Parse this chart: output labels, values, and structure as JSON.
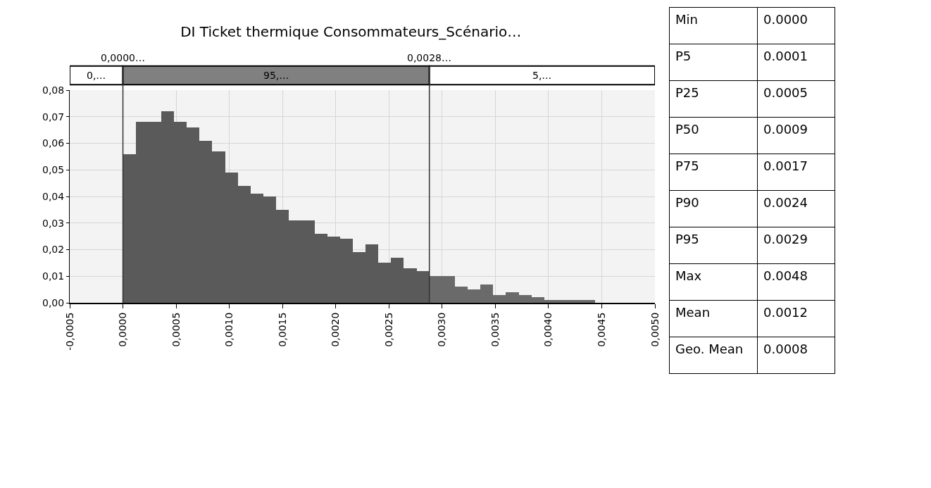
{
  "chart_data": [
    {
      "type": "histogram",
      "title": "DI Ticket thermique Consommateurs_Scénario…",
      "bins": [
        0,
        0.00012,
        0.00024,
        0.00036,
        0.00048,
        0.0006,
        0.00072,
        0.00084,
        0.00096,
        0.00108,
        0.0012,
        0.00132,
        0.00144,
        0.00156,
        0.00168,
        0.0018,
        0.00192,
        0.00204,
        0.00216,
        0.00228,
        0.0024,
        0.00252,
        0.00264,
        0.00276,
        0.00288,
        0.003,
        0.00312,
        0.00324,
        0.00336,
        0.00348,
        0.0036,
        0.00372,
        0.00384,
        0.00396,
        0.00408,
        0.0042,
        0.00432,
        0.00444
      ],
      "values": [
        0.056,
        0.068,
        0.068,
        0.072,
        0.068,
        0.066,
        0.061,
        0.057,
        0.049,
        0.044,
        0.041,
        0.04,
        0.035,
        0.031,
        0.031,
        0.026,
        0.025,
        0.024,
        0.019,
        0.022,
        0.015,
        0.017,
        0.013,
        0.012,
        0.01,
        0.01,
        0.006,
        0.005,
        0.007,
        0.003,
        0.004,
        0.003,
        0.002,
        0.001,
        0.001,
        0.001,
        0.001
      ],
      "colors": [
        "#5a5a5a",
        "#5a5a5a",
        "#5a5a5a",
        "#5a5a5a",
        "#5a5a5a",
        "#5a5a5a",
        "#5a5a5a",
        "#5a5a5a",
        "#5a5a5a",
        "#5a5a5a",
        "#5a5a5a",
        "#5a5a5a",
        "#5a5a5a",
        "#5a5a5a",
        "#5a5a5a",
        "#5a5a5a",
        "#5a5a5a",
        "#5a5a5a",
        "#5a5a5a",
        "#5a5a5a",
        "#5a5a5a",
        "#5a5a5a",
        "#5a5a5a",
        "#5a5a5a",
        "#6a6a6a",
        "#6a6a6a",
        "#6a6a6a",
        "#6a6a6a",
        "#6a6a6a",
        "#6a6a6a",
        "#6a6a6a",
        "#6a6a6a",
        "#6a6a6a",
        "#6a6a6a",
        "#6a6a6a",
        "#6a6a6a",
        "#6a6a6a"
      ],
      "xlim": [
        -0.0005,
        0.005
      ],
      "xticks": [
        {
          "value": -0.0005,
          "label": "-0,0005"
        },
        {
          "value": 0,
          "label": "0,0000"
        },
        {
          "value": 0.0005,
          "label": "0,0005"
        },
        {
          "value": 0.001,
          "label": "0,0010"
        },
        {
          "value": 0.0015,
          "label": "0,0015"
        },
        {
          "value": 0.002,
          "label": "0,0020"
        },
        {
          "value": 0.0025,
          "label": "0,0025"
        },
        {
          "value": 0.003,
          "label": "0,0030"
        },
        {
          "value": 0.0035,
          "label": "0,0035"
        },
        {
          "value": 0.004,
          "label": "0,0040"
        },
        {
          "value": 0.0045,
          "label": "0,0045"
        },
        {
          "value": 0.005,
          "label": "0,0050"
        }
      ],
      "ylim": [
        0,
        0.08
      ],
      "yticks": [
        {
          "value": 0,
          "label": "0,00"
        },
        {
          "value": 0.01,
          "label": "0,01"
        },
        {
          "value": 0.02,
          "label": "0,02"
        },
        {
          "value": 0.03,
          "label": "0,03"
        },
        {
          "value": 0.04,
          "label": "0,04"
        },
        {
          "value": 0.05,
          "label": "0,05"
        },
        {
          "value": 0.06,
          "label": "0,06"
        },
        {
          "value": 0.07,
          "label": "0,07"
        },
        {
          "value": 0.08,
          "label": "0,08"
        }
      ],
      "grid": true,
      "ref_lines": [
        {
          "axis": "x",
          "value": 0,
          "label": "0,0000…",
          "color": "#333333"
        },
        {
          "axis": "x",
          "value": 0.00288,
          "label": "0,0028…",
          "color": "#333333"
        }
      ],
      "annotations": [
        "0,…",
        "95,…",
        "5,…"
      ]
    },
    {
      "type": "other",
      "annotations": [
        "Min",
        "0.0000",
        "P5",
        "0.0001",
        "P25",
        "0.0005",
        "P50",
        "0.0009",
        "P75",
        "0.0017",
        "P90",
        "0.0024",
        "P95",
        "0.0029",
        "Max",
        "0.0048",
        "Mean",
        "0.0012",
        "Geo. Mean",
        "0.0008"
      ]
    }
  ]
}
